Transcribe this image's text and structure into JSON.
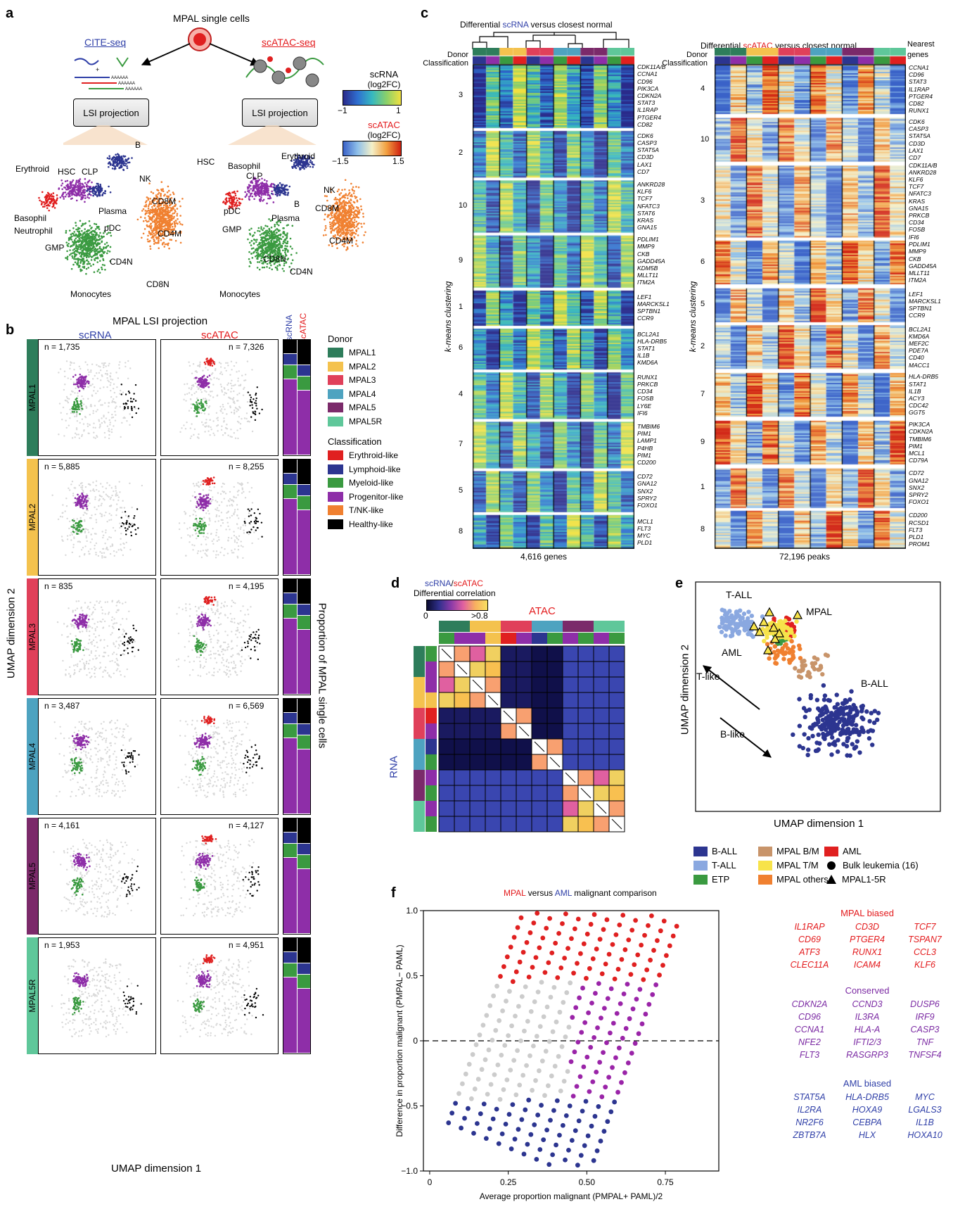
{
  "panel_a": {
    "label": "a",
    "title": "MPAL single cells",
    "cite_label": "CITE-seq",
    "atac_label": "scATAC-seq",
    "lsi_left": "LSI projection",
    "lsi_right": "LSI projection",
    "left_clusters": [
      "B",
      "Erythroid",
      "HSC",
      "CLP",
      "NK",
      "CD8M",
      "Basophil",
      "Plasma",
      "CD4M",
      "Neutrophil",
      "pDC",
      "GMP",
      "CD4N",
      "CD8N",
      "Monocytes"
    ],
    "right_clusters": [
      "HSC",
      "Erythroid",
      "Basophil",
      "CLP",
      "NK",
      "B",
      "CD8M",
      "pDC",
      "GMP",
      "Plasma",
      "CD4M",
      "CD8N",
      "CD4N",
      "Monocytes"
    ],
    "scale_rna": {
      "title": "scRNA",
      "unit": "(log2FC)",
      "min": "−1",
      "max": "1"
    },
    "scale_atac": {
      "title": "scATAC",
      "unit": "(log2FC)",
      "min": "−1.5",
      "max": "1.5"
    }
  },
  "panel_b": {
    "label": "b",
    "title": "MPAL LSI projection",
    "col_rna": "scRNA",
    "col_atac": "scATAC",
    "bar_rna": "scRNA",
    "bar_atac": "scATAC",
    "ylabel": "UMAP dimension 2",
    "xlabel": "UMAP dimension 1",
    "right_label": "Proportion of MPAL single cells",
    "rows": [
      {
        "donor": "MPAL1",
        "n_rna": "n = 1,735",
        "n_atac": "n = 7,326",
        "color": "#2e7d5b"
      },
      {
        "donor": "MPAL2",
        "n_rna": "n = 5,885",
        "n_atac": "n = 8,255",
        "color": "#f4c24e"
      },
      {
        "donor": "MPAL3",
        "n_rna": "n = 835",
        "n_atac": "n = 4,195",
        "color": "#e0405a"
      },
      {
        "donor": "MPAL4",
        "n_rna": "n = 3,487",
        "n_atac": "n = 6,569",
        "color": "#4ea3c0"
      },
      {
        "donor": "MPAL5",
        "n_rna": "n = 4,161",
        "n_atac": "n = 4,127",
        "color": "#7b2a6a"
      },
      {
        "donor": "MPAL5R",
        "n_rna": "n = 1,953",
        "n_atac": "n = 4,951",
        "color": "#5fc79a"
      }
    ],
    "legend_donor_title": "Donor",
    "legend_donor": [
      {
        "name": "MPAL1",
        "color": "#2e7d5b"
      },
      {
        "name": "MPAL2",
        "color": "#f4c24e"
      },
      {
        "name": "MPAL3",
        "color": "#e0405a"
      },
      {
        "name": "MPAL4",
        "color": "#4ea3c0"
      },
      {
        "name": "MPAL5",
        "color": "#7b2a6a"
      },
      {
        "name": "MPAL5R",
        "color": "#5fc79a"
      }
    ],
    "legend_class_title": "Classification",
    "legend_class": [
      {
        "name": "Erythroid-like",
        "color": "#e02020"
      },
      {
        "name": "Lymphoid-like",
        "color": "#2c3590"
      },
      {
        "name": "Myeloid-like",
        "color": "#3a9a40"
      },
      {
        "name": "Progenitor-like",
        "color": "#8e2ea8"
      },
      {
        "name": "T/NK-like",
        "color": "#f08030"
      },
      {
        "name": "Healthy-like",
        "color": "#000000"
      }
    ]
  },
  "panel_c": {
    "label": "c",
    "rna_title_pre": "Differential ",
    "rna_title_em": "scRNA",
    "rna_title_post": " versus closest normal",
    "atac_title_pre": "Differential ",
    "atac_title_em": "scATAC",
    "atac_title_post": " versus closest normal",
    "donor_label": "Donor",
    "class_label": "Classification",
    "nearest_label": "Nearest genes",
    "ylabel": "k-means clustering",
    "rna_footer": "4,616 genes",
    "atac_footer": "72,196 peaks",
    "rna_clusters": [
      {
        "id": "3",
        "genes": [
          "CDK11A/B",
          "CCNA1",
          "CD96",
          "PIK3CA",
          "CDKN2A",
          "STAT3",
          "IL1RAP",
          "PTGER4",
          "CD82"
        ]
      },
      {
        "id": "2",
        "genes": [
          "CDK6",
          "CASP3",
          "STAT5A",
          "CD3D",
          "LAX1",
          "CD7"
        ]
      },
      {
        "id": "10",
        "genes": [
          "ANKRD28",
          "KLF6",
          "TCF7",
          "NFATC3",
          "STAT6",
          "KRAS",
          "GNA15"
        ]
      },
      {
        "id": "9",
        "genes": [
          "PDLIM1",
          "MMP9",
          "CKB",
          "GADD45A",
          "KDM5B",
          "MLLT11",
          "ITM2A"
        ]
      },
      {
        "id": "1",
        "genes": [
          "LEF1",
          "MARCKSL1",
          "SPTBN1",
          "CCR9"
        ]
      },
      {
        "id": "6",
        "genes": [
          "BCL2A1",
          "HLA-DRB5",
          "STAT1",
          "IL1B",
          "KMD6A"
        ]
      },
      {
        "id": "4",
        "genes": [
          "RUNX1",
          "PRKCB",
          "CD34",
          "FOSB",
          "LY6E",
          "IFI6"
        ]
      },
      {
        "id": "7",
        "genes": [
          "TMBIM6",
          "PIM1",
          "LAMP1",
          "P4HB",
          "PIM1",
          "CD200"
        ]
      },
      {
        "id": "5",
        "genes": [
          "CD72",
          "GNA12",
          "SNX2",
          "SPRY2",
          "FOXO1"
        ]
      },
      {
        "id": "8",
        "genes": [
          "MCL1",
          "FLT3",
          "MYC",
          "PLD1"
        ]
      }
    ],
    "atac_clusters": [
      {
        "id": "4",
        "genes": [
          "CCNA1",
          "CD96",
          "STAT3",
          "IL1RAP",
          "PTGER4",
          "CD82",
          "RUNX1"
        ]
      },
      {
        "id": "10",
        "genes": [
          "CDK6",
          "CASP3",
          "STAT5A",
          "CD3D",
          "LAX1",
          "CD7"
        ]
      },
      {
        "id": "3",
        "genes": [
          "CDK11A/B",
          "ANKRD28",
          "KLF6",
          "TCF7",
          "NFATC3",
          "KRAS",
          "GNA15",
          "PRKCB",
          "CD34",
          "FOSB",
          "IFI6"
        ]
      },
      {
        "id": "6",
        "genes": [
          "PDLIM1",
          "MMP9",
          "CKB",
          "GADD45A",
          "MLLT11",
          "ITM2A"
        ]
      },
      {
        "id": "5",
        "genes": [
          "LEF1",
          "MARCKSL1",
          "SPTBN1",
          "CCR9"
        ]
      },
      {
        "id": "2",
        "genes": [
          "BCL2A1",
          "KMD6A",
          "MEF2C",
          "PDE7A",
          "CD40",
          "MACC1"
        ]
      },
      {
        "id": "7",
        "genes": [
          "HLA-DRB5",
          "STAT1",
          "IL1B",
          "ACY3",
          "CDC42",
          "GGT5"
        ]
      },
      {
        "id": "9",
        "genes": [
          "PIK3CA",
          "CDKN2A",
          "TMBIM6",
          "PIM1",
          "MCL1",
          "CD79A"
        ]
      },
      {
        "id": "1",
        "genes": [
          "CD72",
          "GNA12",
          "SNX2",
          "SPRY2",
          "FOXO1"
        ]
      },
      {
        "id": "8",
        "genes": [
          "CD200",
          "RCSD1",
          "FLT3",
          "PLD1",
          "PROM1"
        ]
      }
    ]
  },
  "panel_d": {
    "label": "d",
    "title_rna": "scRNA",
    "title_sep": "/",
    "title_atac": "scATAC",
    "subtitle": "Differential correlation",
    "scale_min": "0",
    "scale_max": ">0.8",
    "col_label": "ATAC",
    "row_label": "RNA"
  },
  "panel_e": {
    "label": "e",
    "xlabel": "UMAP dimension 1",
    "ylabel": "UMAP dimension 2",
    "annotations": [
      "T-ALL",
      "MPAL",
      "AML",
      "T-like",
      "B-ALL",
      "B-like"
    ],
    "legend": [
      {
        "name": "B-ALL",
        "color": "#2c3590",
        "shape": "square"
      },
      {
        "name": "T-ALL",
        "color": "#8aa8e0",
        "shape": "square"
      },
      {
        "name": "ETP",
        "color": "#3a9a40",
        "shape": "square"
      },
      {
        "name": "MPAL B/M",
        "color": "#c8946a",
        "shape": "square"
      },
      {
        "name": "MPAL T/M",
        "color": "#f7e34a",
        "shape": "square"
      },
      {
        "name": "MPAL others",
        "color": "#f08030",
        "shape": "square"
      },
      {
        "name": "AML",
        "color": "#e02020",
        "shape": "square"
      },
      {
        "name": "Bulk leukemia (16)",
        "color": "#000000",
        "shape": "circle"
      },
      {
        "name": "MPAL1-5R",
        "color": "#000000",
        "shape": "triangle"
      }
    ]
  },
  "panel_f": {
    "label": "f",
    "title_mpal": "MPAL",
    "title_mid": " versus ",
    "title_aml": "AML",
    "title_post": " malignant comparison",
    "xlabel": "Average proportion malignant (PMPAL+ PAML)/2",
    "ylabel": "Difference in proportion malignant (PMPAL− PAML)",
    "mpal_biased_title": "MPAL biased",
    "mpal_biased": [
      "IL1RAP",
      "CD3D",
      "TCF7",
      "CD69",
      "PTGER4",
      "TSPAN7",
      "ATF3",
      "RUNX1",
      "CCL3",
      "CLEC11A",
      "ICAM4",
      "KLF6"
    ],
    "conserved_title": "Conserved",
    "conserved": [
      "CDKN2A",
      "CCND3",
      "DUSP6",
      "CD96",
      "IL3RA",
      "IRF9",
      "CCNA1",
      "HLA-A",
      "CASP3",
      "NFE2",
      "IFTI2/3",
      "TNF",
      "FLT3",
      "RASGRP3",
      "TNFSF4"
    ],
    "aml_biased_title": "AML biased",
    "aml_biased": [
      "STAT5A",
      "HLA-DRB5",
      "MYC",
      "IL2RA",
      "HOXA9",
      "LGALS3",
      "NR2F6",
      "CEBPA",
      "IL1B",
      "ZBTB7A",
      "HLX",
      "HOXA10"
    ]
  },
  "chart_data": {
    "type": "scatter",
    "title": "MPAL versus AML malignant comparison",
    "xlabel": "Average proportion malignant (PMPAL+ PAML)/2",
    "ylabel": "Difference in proportion malignant (PMPAL− PAML)",
    "xlim": [
      -0.02,
      0.92
    ],
    "ylim": [
      -1.0,
      1.0
    ],
    "x_ticks": [
      "0",
      "0.25",
      "0.50",
      "0.75"
    ],
    "y_ticks": [
      "1.0",
      "0.5",
      "0",
      "−0.5",
      "−1.0"
    ],
    "categories_legend": {
      "mpal_biased": "#e02020",
      "conserved": "#9a24a8",
      "aml_biased": "#2c3590",
      "other": "#cccccc"
    }
  }
}
